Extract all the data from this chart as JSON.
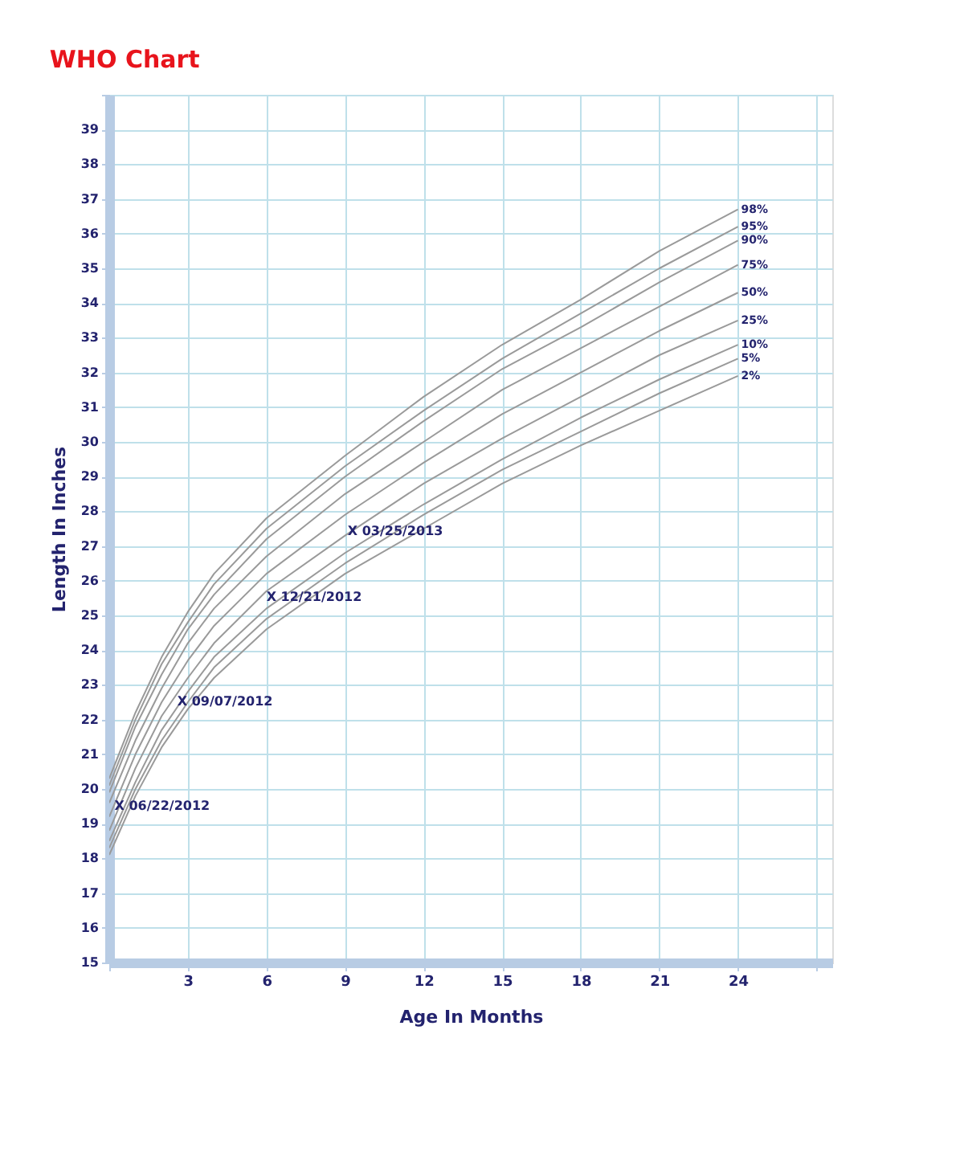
{
  "chart_data": {
    "type": "line",
    "title": "WHO Chart",
    "xlabel": "Age In Months",
    "ylabel": "Length In Inches",
    "x": [
      0,
      1,
      2,
      3,
      4,
      6,
      9,
      12,
      15,
      18,
      21,
      24
    ],
    "series": [
      {
        "name": "98%",
        "color": "#9a9a9a",
        "values": [
          20.3,
          22.2,
          23.8,
          25.1,
          26.2,
          27.8,
          29.6,
          31.3,
          32.8,
          34.1,
          35.5,
          36.7
        ]
      },
      {
        "name": "95%",
        "color": "#9a9a9a",
        "values": [
          20.1,
          22.0,
          23.6,
          24.8,
          25.9,
          27.5,
          29.3,
          30.9,
          32.4,
          33.7,
          35.0,
          36.2
        ]
      },
      {
        "name": "90%",
        "color": "#9a9a9a",
        "values": [
          19.9,
          21.8,
          23.3,
          24.6,
          25.6,
          27.2,
          29.0,
          30.6,
          32.1,
          33.3,
          34.6,
          35.8
        ]
      },
      {
        "name": "75%",
        "color": "#9a9a9a",
        "values": [
          19.6,
          21.4,
          22.9,
          24.2,
          25.2,
          26.7,
          28.5,
          30.0,
          31.5,
          32.7,
          33.9,
          35.1
        ]
      },
      {
        "name": "50%",
        "color": "#9a9a9a",
        "values": [
          19.2,
          21.0,
          22.5,
          23.7,
          24.7,
          26.2,
          27.9,
          29.4,
          30.8,
          32.0,
          33.2,
          34.3
        ]
      },
      {
        "name": "25%",
        "color": "#9a9a9a",
        "values": [
          18.8,
          20.6,
          22.1,
          23.2,
          24.2,
          25.7,
          27.3,
          28.8,
          30.1,
          31.3,
          32.5,
          33.5
        ]
      },
      {
        "name": "10%",
        "color": "#9a9a9a",
        "values": [
          18.5,
          20.2,
          21.7,
          22.8,
          23.8,
          25.2,
          26.8,
          28.2,
          29.5,
          30.7,
          31.8,
          32.8
        ]
      },
      {
        "name": "5%",
        "color": "#9a9a9a",
        "values": [
          18.3,
          20.0,
          21.4,
          22.5,
          23.5,
          24.9,
          26.5,
          27.9,
          29.2,
          30.3,
          31.4,
          32.4
        ]
      },
      {
        "name": "2%",
        "color": "#9a9a9a",
        "values": [
          18.1,
          19.8,
          21.2,
          22.3,
          23.2,
          24.6,
          26.2,
          27.5,
          28.8,
          29.9,
          30.9,
          31.9
        ]
      }
    ],
    "annotations": [
      {
        "text": "X 06/22/2012",
        "x": 0.2,
        "y": 19.5
      },
      {
        "text": "X 09/07/2012",
        "x": 2.6,
        "y": 22.5
      },
      {
        "text": "X 12/21/2012",
        "x": 6.0,
        "y": 25.5
      },
      {
        "text": "X 03/25/2013",
        "x": 9.1,
        "y": 27.4
      }
    ],
    "xlim": [
      0,
      27.6
    ],
    "xticks": [
      {
        "value": 0,
        "label": null
      },
      3,
      6,
      9,
      12,
      15,
      18,
      21,
      24,
      {
        "value": 27,
        "label": null
      }
    ],
    "ylim": [
      15,
      40
    ],
    "yticks": [
      15,
      16,
      17,
      18,
      19,
      20,
      21,
      22,
      23,
      24,
      25,
      26,
      27,
      28,
      29,
      30,
      31,
      32,
      33,
      34,
      35,
      36,
      37,
      38,
      39,
      {
        "value": 40,
        "label": null
      }
    ],
    "grid": true,
    "legend": false,
    "marker": "none",
    "line_style": "solid"
  }
}
